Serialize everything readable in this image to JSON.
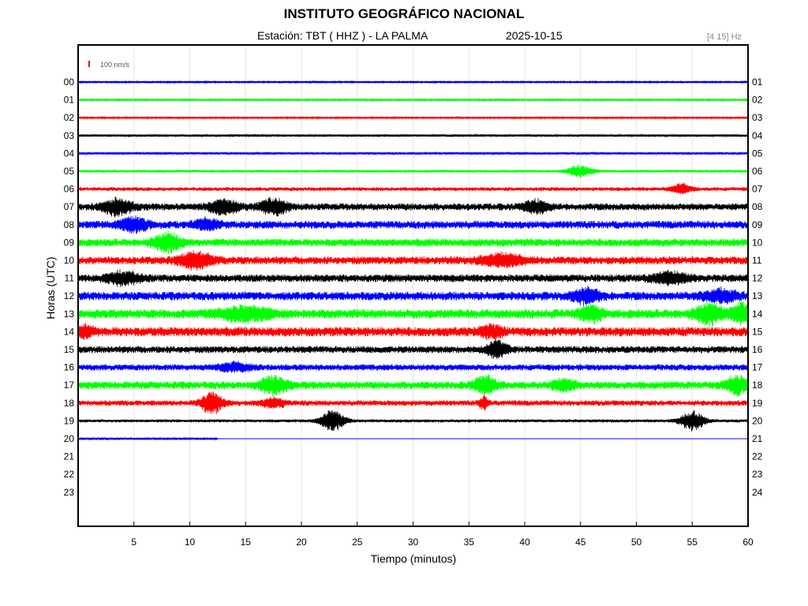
{
  "header": {
    "title": "INSTITUTO GEOGRÁFICO NACIONAL",
    "station": "Estación:  TBT ( HHZ ) - LA PALMA",
    "date": "2025-10-15",
    "filter": "[4 15] Hz"
  },
  "chart_data": {
    "type": "line",
    "title": "INSTITUTO GEOGRÁFICO NACIONAL",
    "xlabel": "Tiempo (minutos)",
    "ylabel": "Horas (UTC)",
    "xlim": [
      0,
      60
    ],
    "x_ticks": [
      "5",
      "10",
      "15",
      "20",
      "25",
      "30",
      "35",
      "40",
      "45",
      "50",
      "55",
      "60"
    ],
    "x_tick_values": [
      5,
      10,
      15,
      20,
      25,
      30,
      35,
      40,
      45,
      50,
      55,
      60
    ],
    "left_hours": [
      "00",
      "01",
      "02",
      "03",
      "04",
      "05",
      "06",
      "07",
      "08",
      "09",
      "10",
      "11",
      "12",
      "13",
      "14",
      "15",
      "16",
      "17",
      "18",
      "19",
      "20",
      "21",
      "22",
      "23"
    ],
    "right_hours": [
      "01",
      "02",
      "03",
      "04",
      "05",
      "06",
      "07",
      "08",
      "09",
      "10",
      "11",
      "12",
      "13",
      "14",
      "15",
      "16",
      "17",
      "18",
      "19",
      "20",
      "21",
      "22",
      "23",
      "24"
    ],
    "scale_label": "100 nm/s",
    "grid": "vertical",
    "colors": {
      "blue": "#0000ff",
      "green": "#00ff00",
      "red": "#ff0000",
      "black": "#000000",
      "scale": "#ff0000"
    },
    "traces": [
      {
        "hour": "00",
        "color": "blue",
        "noise": 2,
        "end_minute": 60,
        "events": []
      },
      {
        "hour": "01",
        "color": "green",
        "noise": 2,
        "end_minute": 60,
        "events": []
      },
      {
        "hour": "02",
        "color": "red",
        "noise": 2,
        "end_minute": 60,
        "events": []
      },
      {
        "hour": "03",
        "color": "black",
        "noise": 3,
        "end_minute": 60,
        "events": []
      },
      {
        "hour": "04",
        "color": "blue",
        "noise": 3,
        "end_minute": 60,
        "events": []
      },
      {
        "hour": "05",
        "color": "green",
        "noise": 3,
        "end_minute": 60,
        "events": [
          {
            "minute": 45,
            "amp": 15,
            "width": 1.2
          }
        ]
      },
      {
        "hour": "06",
        "color": "red",
        "noise": 5,
        "end_minute": 60,
        "events": [
          {
            "minute": 54,
            "amp": 12,
            "width": 0.9
          }
        ]
      },
      {
        "hour": "07",
        "color": "black",
        "noise": 9,
        "end_minute": 60,
        "events": [
          {
            "minute": 3.5,
            "amp": 20,
            "width": 1.3
          },
          {
            "minute": 13,
            "amp": 18,
            "width": 1.3
          },
          {
            "minute": 17.5,
            "amp": 20,
            "width": 1.2
          },
          {
            "minute": 41,
            "amp": 16,
            "width": 1.1
          }
        ]
      },
      {
        "hour": "08",
        "color": "blue",
        "noise": 10,
        "end_minute": 60,
        "events": [
          {
            "minute": 5,
            "amp": 18,
            "width": 1.2
          },
          {
            "minute": 11.5,
            "amp": 14,
            "width": 1.0
          }
        ]
      },
      {
        "hour": "09",
        "color": "green",
        "noise": 10,
        "end_minute": 60,
        "events": [
          {
            "minute": 8,
            "amp": 22,
            "width": 1.3
          }
        ]
      },
      {
        "hour": "10",
        "color": "red",
        "noise": 10,
        "end_minute": 60,
        "events": [
          {
            "minute": 10.5,
            "amp": 20,
            "width": 1.5
          },
          {
            "minute": 38,
            "amp": 14,
            "width": 2.0
          }
        ]
      },
      {
        "hour": "11",
        "color": "black",
        "noise": 10,
        "end_minute": 60,
        "events": [
          {
            "minute": 4,
            "amp": 14,
            "width": 1.5
          },
          {
            "minute": 53,
            "amp": 14,
            "width": 1.5
          }
        ]
      },
      {
        "hour": "12",
        "color": "blue",
        "noise": 11,
        "end_minute": 60,
        "events": [
          {
            "minute": 45.5,
            "amp": 18,
            "width": 1.2
          },
          {
            "minute": 57.5,
            "amp": 14,
            "width": 1.5
          }
        ]
      },
      {
        "hour": "13",
        "color": "green",
        "noise": 12,
        "end_minute": 60,
        "events": [
          {
            "minute": 15,
            "amp": 16,
            "width": 2.5
          },
          {
            "minute": 46,
            "amp": 18,
            "width": 1.0
          },
          {
            "minute": 56.5,
            "amp": 24,
            "width": 1.3
          },
          {
            "minute": 59.3,
            "amp": 24,
            "width": 0.8
          }
        ]
      },
      {
        "hour": "14",
        "color": "red",
        "noise": 12,
        "end_minute": 60,
        "events": [
          {
            "minute": 0.5,
            "amp": 14,
            "width": 0.8
          },
          {
            "minute": 37,
            "amp": 14,
            "width": 1.0
          }
        ]
      },
      {
        "hour": "15",
        "color": "black",
        "noise": 9,
        "end_minute": 60,
        "events": [
          {
            "minute": 37.5,
            "amp": 22,
            "width": 0.9
          }
        ]
      },
      {
        "hour": "16",
        "color": "blue",
        "noise": 8,
        "end_minute": 60,
        "events": [
          {
            "minute": 14,
            "amp": 10,
            "width": 1.5
          }
        ]
      },
      {
        "hour": "17",
        "color": "green",
        "noise": 10,
        "end_minute": 60,
        "events": [
          {
            "minute": 17.5,
            "amp": 20,
            "width": 1.3
          },
          {
            "minute": 36.5,
            "amp": 22,
            "width": 1.0
          },
          {
            "minute": 43.5,
            "amp": 14,
            "width": 1.0
          },
          {
            "minute": 59,
            "amp": 22,
            "width": 1.0
          }
        ]
      },
      {
        "hour": "18",
        "color": "red",
        "noise": 7,
        "end_minute": 60,
        "events": [
          {
            "minute": 12,
            "amp": 28,
            "width": 0.9
          },
          {
            "minute": 17.5,
            "amp": 12,
            "width": 1.0
          },
          {
            "minute": 36.3,
            "amp": 16,
            "width": 0.4
          }
        ]
      },
      {
        "hour": "19",
        "color": "black",
        "noise": 4,
        "end_minute": 60,
        "events": [
          {
            "minute": 22.8,
            "amp": 26,
            "width": 1.1
          },
          {
            "minute": 55,
            "amp": 24,
            "width": 1.1
          }
        ]
      },
      {
        "hour": "20",
        "color": "blue",
        "noise": 3,
        "end_minute": 12.5,
        "events": []
      },
      {
        "hour": "21",
        "color": "black",
        "noise": 0,
        "end_minute": 0,
        "events": []
      },
      {
        "hour": "22",
        "color": "red",
        "noise": 0,
        "end_minute": 0,
        "events": []
      },
      {
        "hour": "23",
        "color": "blue",
        "noise": 0,
        "end_minute": 0,
        "events": []
      }
    ]
  }
}
